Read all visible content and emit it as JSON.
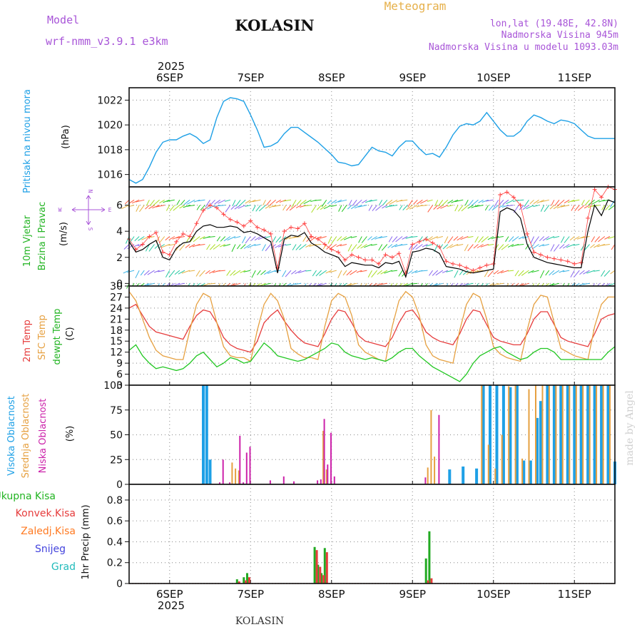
{
  "header": {
    "model_label": "Model",
    "model_name": "wrf-nmm_v3.9.1 e3km",
    "station": "KOLASIN",
    "product": "Meteogram",
    "coords": "lon,lat (19.48E, 42.8N)",
    "altitude": "Nadmorska Visina 945m",
    "model_altitude": "Nadmorska Visina u modelu 1093.03m",
    "watermark": "made by Angel",
    "footer": "KOLASIN"
  },
  "colors": {
    "pressure": "#1ea0e6",
    "wind_speed": "#000000",
    "gust": "#ff4040",
    "temp2m": "#e63c3c",
    "sfc_temp": "#e6a040",
    "dewpt": "#22c722",
    "high_cloud": "#1ea0e6",
    "mid_cloud": "#e6a040",
    "low_cloud": "#cc22aa",
    "total_precip": "#22aa22",
    "conv_precip": "#e63c3c",
    "frozen_precip": "#ff7a22",
    "snow": "#4444dd",
    "hail": "#22bbbb",
    "grid": "#9a9a9a",
    "title_purple": "#a855d8",
    "title_orange": "#e6b04a"
  },
  "time_axis": {
    "year": "2025",
    "hours_total": 144,
    "labels": [
      "6SEP",
      "7SEP",
      "8SEP",
      "9SEP",
      "10SEP",
      "11SEP"
    ],
    "label_hours": [
      12,
      36,
      60,
      84,
      108,
      132
    ]
  },
  "chart_data": [
    {
      "type": "line",
      "id": "pressure",
      "title": "Pritisak na nivou mora",
      "ylabel": "(hPa)",
      "ylim": [
        1015.0,
        1023.0
      ],
      "yticks": [
        1016,
        1018,
        1020,
        1022
      ],
      "x_hours": [
        0,
        2,
        4,
        6,
        8,
        10,
        12,
        14,
        16,
        18,
        20,
        22,
        24,
        26,
        28,
        30,
        32,
        34,
        36,
        38,
        40,
        42,
        44,
        46,
        48,
        50,
        52,
        54,
        56,
        58,
        60,
        62,
        64,
        66,
        68,
        70,
        72,
        74,
        76,
        78,
        80,
        82,
        84,
        86,
        88,
        90,
        92,
        94,
        96,
        98,
        100,
        102,
        104,
        106,
        108,
        110,
        112,
        114,
        116,
        118,
        120,
        122,
        124,
        126,
        128,
        130,
        132,
        134,
        136,
        138,
        140,
        142,
        144
      ],
      "series": [
        {
          "name": "MSLP",
          "values": [
            1015.6,
            1015.3,
            1015.6,
            1016.6,
            1017.8,
            1018.6,
            1018.8,
            1018.8,
            1019.1,
            1019.3,
            1019.0,
            1018.5,
            1018.8,
            1020.6,
            1021.9,
            1022.2,
            1022.1,
            1021.9,
            1020.8,
            1019.6,
            1018.2,
            1018.3,
            1018.6,
            1019.3,
            1019.8,
            1019.8,
            1019.4,
            1019.0,
            1018.6,
            1018.1,
            1017.6,
            1017.0,
            1016.9,
            1016.7,
            1016.8,
            1017.5,
            1018.2,
            1017.9,
            1017.8,
            1017.5,
            1018.2,
            1018.7,
            1018.7,
            1018.1,
            1017.6,
            1017.7,
            1017.4,
            1018.2,
            1019.2,
            1019.9,
            1020.1,
            1020.0,
            1020.3,
            1021.0,
            1020.3,
            1019.6,
            1019.1,
            1019.1,
            1019.5,
            1020.3,
            1020.8,
            1020.6,
            1020.3,
            1020.1,
            1020.4,
            1020.3,
            1020.1,
            1019.6,
            1019.1,
            1018.9,
            1018.9,
            1018.9,
            1018.9
          ]
        }
      ]
    },
    {
      "type": "line",
      "id": "wind",
      "title": "10m Vjetar",
      "title2": "Brzina i Pravac",
      "ylabel": "(m/s)",
      "ylim": [
        -0.2,
        7.4
      ],
      "yticks": [
        0,
        2,
        4,
        6
      ],
      "compass": {
        "n": "N",
        "w": "W",
        "e": "E",
        "s": "S"
      },
      "barb_levels_ms": [
        0,
        1.0,
        3.0,
        3.6,
        6.0,
        6.4
      ],
      "x_hours": [
        0,
        2,
        4,
        6,
        8,
        10,
        12,
        14,
        16,
        18,
        20,
        22,
        24,
        26,
        28,
        30,
        32,
        34,
        36,
        38,
        40,
        42,
        44,
        46,
        48,
        50,
        52,
        54,
        56,
        58,
        60,
        62,
        64,
        66,
        68,
        70,
        72,
        74,
        76,
        78,
        80,
        82,
        84,
        86,
        88,
        90,
        92,
        94,
        96,
        98,
        100,
        102,
        104,
        106,
        108,
        110,
        112,
        114,
        116,
        118,
        120,
        122,
        124,
        126,
        128,
        130,
        132,
        134,
        136,
        138,
        140,
        142,
        144
      ],
      "series": [
        {
          "name": "wind speed",
          "values": [
            3.2,
            2.4,
            2.6,
            3.0,
            3.3,
            2.0,
            1.8,
            2.7,
            3.1,
            3.2,
            4.0,
            4.4,
            4.5,
            4.3,
            4.3,
            4.4,
            4.3,
            3.9,
            4.0,
            3.8,
            3.5,
            3.2,
            0.8,
            3.4,
            3.7,
            3.6,
            3.9,
            3.1,
            2.8,
            2.4,
            2.2,
            2.0,
            1.3,
            1.6,
            1.5,
            1.4,
            1.4,
            1.2,
            1.6,
            1.5,
            1.7,
            0.5,
            2.4,
            2.5,
            2.7,
            2.6,
            2.3,
            1.3,
            1.2,
            1.1,
            0.9,
            0.8,
            0.9,
            1.0,
            1.1,
            5.5,
            5.8,
            5.6,
            5.0,
            3.0,
            2.0,
            1.8,
            1.6,
            1.5,
            1.4,
            1.3,
            1.2,
            1.2,
            4.0,
            6.0,
            5.2,
            6.4,
            6.2
          ]
        },
        {
          "name": "gust",
          "values": [
            3.4,
            2.6,
            3.0,
            3.6,
            3.9,
            2.4,
            2.2,
            3.2,
            3.8,
            3.6,
            4.6,
            5.6,
            6.0,
            5.8,
            5.3,
            4.9,
            4.7,
            4.4,
            4.8,
            4.3,
            4.1,
            3.8,
            1.2,
            4.0,
            4.3,
            4.2,
            4.6,
            3.6,
            3.4,
            3.0,
            2.6,
            2.4,
            1.8,
            2.2,
            2.0,
            1.8,
            1.8,
            1.5,
            2.2,
            2.0,
            2.3,
            0.8,
            3.0,
            3.2,
            3.4,
            3.1,
            2.8,
            1.7,
            1.5,
            1.4,
            1.2,
            1.0,
            1.2,
            1.4,
            1.5,
            6.8,
            7.0,
            6.6,
            6.0,
            3.8,
            2.4,
            2.2,
            2.0,
            1.9,
            1.8,
            1.7,
            1.5,
            1.6,
            5.0,
            7.2,
            6.6,
            7.4,
            7.2
          ]
        }
      ]
    },
    {
      "type": "line",
      "id": "temperature",
      "title": "2m Temp",
      "title2": "SFC Temp",
      "title3": "dewpt Temp",
      "ylabel": "(C)",
      "ylim": [
        3,
        30
      ],
      "yticks": [
        3,
        6,
        9,
        12,
        15,
        18,
        21,
        24,
        27,
        30
      ],
      "x_hours": [
        0,
        2,
        4,
        6,
        8,
        10,
        12,
        14,
        16,
        18,
        20,
        22,
        24,
        26,
        28,
        30,
        32,
        34,
        36,
        38,
        40,
        42,
        44,
        46,
        48,
        50,
        52,
        54,
        56,
        58,
        60,
        62,
        64,
        66,
        68,
        70,
        72,
        74,
        76,
        78,
        80,
        82,
        84,
        86,
        88,
        90,
        92,
        94,
        96,
        98,
        100,
        102,
        104,
        106,
        108,
        110,
        112,
        114,
        116,
        118,
        120,
        122,
        124,
        126,
        128,
        130,
        132,
        134,
        136,
        138,
        140,
        142,
        144
      ],
      "series": [
        {
          "name": "2m Temp",
          "values": [
            24,
            25,
            22,
            19,
            17.5,
            17,
            16.5,
            16,
            15.5,
            19,
            22,
            23.5,
            23,
            20,
            16,
            14,
            13,
            12.5,
            12,
            15,
            20,
            22,
            23.5,
            20.5,
            18,
            16,
            14.5,
            14,
            13.5,
            17,
            21,
            23.5,
            23,
            20,
            16.5,
            15,
            14.5,
            14,
            13.5,
            16,
            20,
            23,
            23.5,
            21,
            17.5,
            16,
            15,
            14.5,
            14,
            17,
            21,
            23.5,
            23,
            19.5,
            16,
            15,
            14.5,
            14,
            14,
            17,
            21,
            23,
            23,
            19.5,
            16,
            15,
            14.5,
            14,
            13.5,
            17,
            21,
            22,
            22.5
          ]
        },
        {
          "name": "SFC Temp",
          "values": [
            28.5,
            26,
            21,
            16,
            12.5,
            11,
            10.5,
            10,
            10,
            18,
            25,
            28,
            27,
            20,
            13.5,
            11,
            10.5,
            10.5,
            9.5,
            18,
            25,
            28,
            26,
            21,
            13,
            11.5,
            10.5,
            10.5,
            10,
            19,
            26,
            28,
            27,
            22,
            14,
            12,
            11,
            10,
            9.5,
            19,
            26,
            28.5,
            27,
            22,
            14,
            11,
            10,
            9.5,
            9,
            18,
            25,
            28,
            27,
            21,
            13.5,
            11.5,
            10.5,
            10,
            9.5,
            18,
            25,
            27.5,
            27,
            20,
            13,
            12,
            11,
            10.5,
            10,
            19,
            25,
            27,
            27
          ]
        },
        {
          "name": "dewpt Temp",
          "values": [
            12.5,
            14,
            11,
            9,
            7.5,
            8,
            7.5,
            7,
            7.5,
            9,
            11,
            12,
            10,
            8,
            9,
            10.5,
            10,
            9,
            9.5,
            12,
            14.5,
            13,
            11,
            10.5,
            10,
            9.5,
            10,
            11,
            12,
            13,
            14.5,
            14,
            12,
            11,
            10.5,
            10,
            10.5,
            10,
            9.5,
            10.5,
            12,
            13,
            13,
            11,
            9.5,
            8,
            7,
            6,
            5,
            4,
            6,
            9,
            11,
            12,
            13,
            13.5,
            12,
            11,
            10,
            10.5,
            12,
            13,
            13,
            12,
            10,
            10,
            10,
            10,
            10,
            10,
            10,
            12,
            13.5
          ]
        }
      ]
    },
    {
      "type": "bar",
      "id": "cloud",
      "title": "Visoka Oblacnost",
      "title2": "Srednja Oblacnost",
      "title3": "Niska Oblacnost",
      "ylabel": "(%)",
      "ylim": [
        0,
        100
      ],
      "yticks": [
        0,
        25,
        50,
        75,
        100
      ],
      "series": [
        {
          "name": "Visoka",
          "hours": [
            22,
            23,
            24,
            95,
            99,
            103,
            105,
            107,
            109,
            111,
            113,
            115,
            117,
            119,
            121,
            122,
            124,
            126,
            128,
            130,
            132,
            134,
            136,
            138,
            140,
            142,
            144
          ],
          "values": [
            100,
            100,
            25,
            15,
            18,
            16,
            100,
            100,
            100,
            100,
            98,
            100,
            24,
            24,
            67,
            84,
            100,
            100,
            100,
            100,
            100,
            100,
            100,
            100,
            100,
            100,
            23
          ]
        },
        {
          "name": "Srednja",
          "hours": [
            30,
            31,
            32,
            57,
            58,
            88,
            89,
            90,
            104,
            106,
            108,
            110,
            112,
            114,
            116,
            118,
            120,
            122,
            124,
            126,
            128,
            130,
            132,
            134,
            136,
            138,
            140,
            142
          ],
          "values": [
            22,
            16,
            14,
            54,
            15,
            17,
            75,
            28,
            100,
            40,
            16,
            50,
            99,
            100,
            26,
            96,
            100,
            100,
            100,
            100,
            100,
            100,
            100,
            100,
            100,
            100,
            100,
            100
          ]
        },
        {
          "name": "Niska",
          "hours": [
            26,
            27,
            29,
            32,
            33,
            34,
            35,
            41,
            45,
            48,
            55,
            56,
            57,
            58,
            59,
            60,
            87,
            91
          ],
          "values": [
            2,
            25,
            2,
            49,
            2,
            32,
            38,
            4,
            8,
            3,
            4,
            5,
            66,
            20,
            52,
            8,
            7,
            70
          ]
        }
      ]
    },
    {
      "type": "bar",
      "id": "precip",
      "title": "Ukupna Kisa",
      "title2": "Konvek.Kisa",
      "title3": "Zaledj.Kisa",
      "title4": "Snijeg",
      "title5": "Grad",
      "ylabel": "1hr Precip (mm)",
      "ylim": [
        0,
        0.95
      ],
      "yticks": [
        0,
        0.2,
        0.4,
        0.6,
        0.8
      ],
      "series": [
        {
          "name": "Ukupna Kisa",
          "hours": [
            32,
            34,
            35,
            55,
            56,
            57,
            58,
            88,
            89
          ],
          "values": [
            0.04,
            0.06,
            0.1,
            0.35,
            0.18,
            0.1,
            0.34,
            0.24,
            0.5
          ]
        },
        {
          "name": "Konvek.Kisa",
          "hours": [
            32,
            34,
            35,
            55,
            56,
            57,
            58,
            88,
            89
          ],
          "values": [
            0.02,
            0.03,
            0.06,
            0.32,
            0.16,
            0.08,
            0.3,
            0.03,
            0.05
          ]
        }
      ]
    }
  ]
}
